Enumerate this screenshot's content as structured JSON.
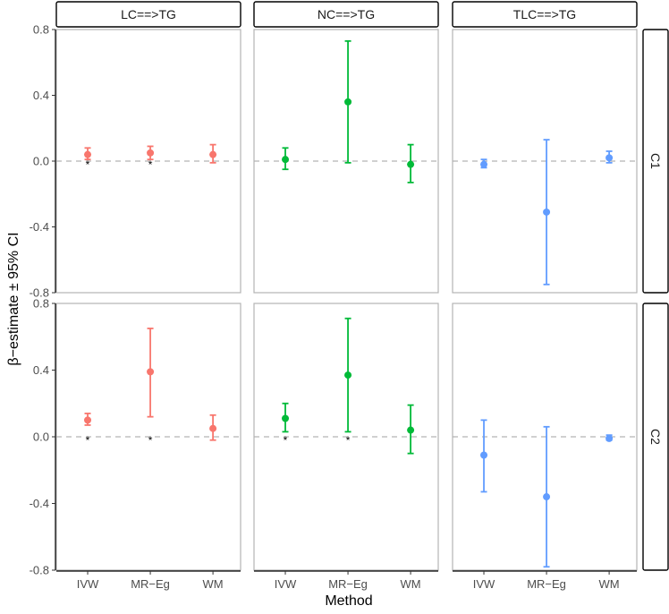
{
  "chart_data": {
    "type": "errorbar",
    "xlabel": "Method",
    "ylabel": "β−estimate ± 95% CI",
    "methods": [
      "IVW",
      "MR−Eg",
      "WM"
    ],
    "columns": [
      "LC==>TG",
      "NC==>TG",
      "TLC==>TG"
    ],
    "rows": [
      "C1",
      "C2"
    ],
    "column_colors": [
      "#F8766D",
      "#00BA38",
      "#619CFF"
    ],
    "y_ticks": [
      "0.8",
      "0.4",
      "0.0",
      "-0.4",
      "-0.8"
    ],
    "ylim_rows": [
      [
        -0.8,
        0.8
      ],
      [
        -0.8,
        0.8
      ]
    ],
    "reference_line": 0,
    "significance_marker": "*",
    "panels": [
      {
        "row": "C1",
        "column": "LC==>TG",
        "estimates": [
          0.04,
          0.05,
          0.04
        ],
        "lower": [
          0.01,
          0.01,
          -0.01
        ],
        "upper": [
          0.08,
          0.09,
          0.1
        ],
        "significant": [
          true,
          true,
          false
        ]
      },
      {
        "row": "C1",
        "column": "NC==>TG",
        "estimates": [
          0.01,
          0.36,
          -0.02
        ],
        "lower": [
          -0.05,
          -0.01,
          -0.13
        ],
        "upper": [
          0.08,
          0.73,
          0.1
        ],
        "significant": [
          false,
          false,
          false
        ]
      },
      {
        "row": "C1",
        "column": "TLC==>TG",
        "estimates": [
          -0.02,
          -0.31,
          0.02
        ],
        "lower": [
          -0.04,
          -0.75,
          -0.01
        ],
        "upper": [
          0.01,
          0.13,
          0.06
        ],
        "significant": [
          false,
          false,
          false
        ]
      },
      {
        "row": "C2",
        "column": "LC==>TG",
        "estimates": [
          0.1,
          0.39,
          0.05
        ],
        "lower": [
          0.07,
          0.12,
          -0.02
        ],
        "upper": [
          0.14,
          0.65,
          0.13
        ],
        "significant": [
          true,
          true,
          false
        ]
      },
      {
        "row": "C2",
        "column": "NC==>TG",
        "estimates": [
          0.11,
          0.37,
          0.04
        ],
        "lower": [
          0.03,
          0.03,
          -0.1
        ],
        "upper": [
          0.2,
          0.71,
          0.19
        ],
        "significant": [
          true,
          true,
          false
        ]
      },
      {
        "row": "C2",
        "column": "TLC==>TG",
        "estimates": [
          -0.11,
          -0.36,
          -0.01
        ],
        "lower": [
          -0.33,
          -0.78,
          -0.02
        ],
        "upper": [
          0.1,
          0.06,
          0.01
        ],
        "significant": [
          false,
          false,
          false
        ]
      }
    ]
  }
}
